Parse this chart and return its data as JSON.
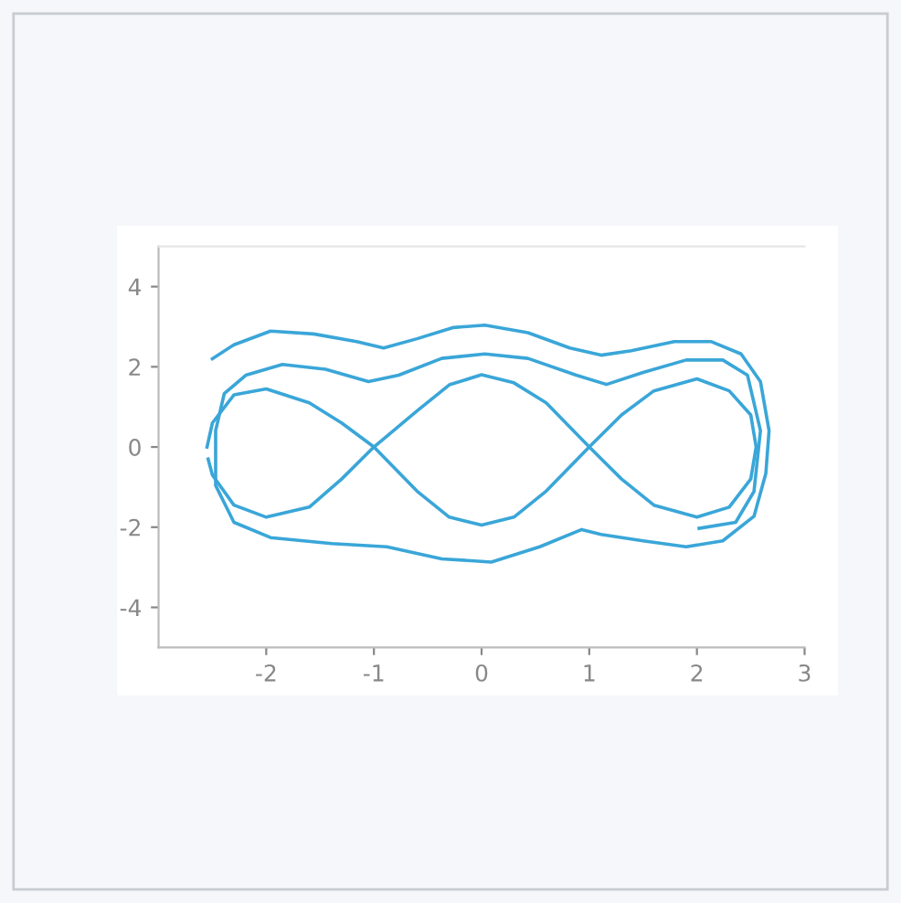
{
  "chart_data": {
    "type": "line",
    "xlim": [
      -3,
      3
    ],
    "ylim": [
      -5,
      5
    ],
    "xticks": [
      -2,
      -1,
      0,
      1,
      2,
      3
    ],
    "yticks": [
      -4,
      -2,
      0,
      2,
      4
    ],
    "grid": false,
    "line_style": "solid",
    "marker": "none",
    "series": [
      {
        "color": "#3aa6d8",
        "x": [
          -2.5,
          -2.3,
          -1.96,
          -1.56,
          -1.16,
          -0.91,
          -0.6,
          -0.26,
          0.03,
          0.43,
          0.82,
          1.11,
          1.39,
          1.79,
          2.13,
          2.41,
          2.59,
          2.67,
          2.64,
          2.53,
          2.24,
          1.9,
          1.5,
          1.11,
          0.93,
          0.54,
          0.09,
          -0.37,
          -0.88,
          -1.39,
          -1.96,
          -2.3,
          -2.47,
          -2.47,
          -2.39,
          -2.19,
          -1.85,
          -1.45,
          -1.05,
          -0.77,
          -0.37,
          0.03,
          0.43,
          0.88,
          1.16,
          1.5,
          1.9,
          2.24,
          2.47,
          2.59,
          2.53,
          2.36,
          2.02
        ],
        "values": [
          2.2,
          2.55,
          2.89,
          2.82,
          2.63,
          2.47,
          2.7,
          2.98,
          3.04,
          2.85,
          2.47,
          2.29,
          2.4,
          2.63,
          2.63,
          2.32,
          1.63,
          0.41,
          -0.66,
          -1.73,
          -2.34,
          -2.49,
          -2.34,
          -2.18,
          -2.06,
          -2.49,
          -2.87,
          -2.79,
          -2.49,
          -2.41,
          -2.26,
          -1.88,
          -0.96,
          0.41,
          1.33,
          1.79,
          2.06,
          1.94,
          1.63,
          1.79,
          2.21,
          2.32,
          2.21,
          1.79,
          1.56,
          1.86,
          2.17,
          2.17,
          1.79,
          0.41,
          -1.11,
          -1.88,
          -2.03
        ]
      },
      {
        "color": "#3aa6d8",
        "x": [
          -2.55,
          -2.5,
          -2.3,
          -2,
          -1.6,
          -1.3,
          -1,
          -0.6,
          -0.3,
          0,
          0.3,
          0.6,
          1,
          1.3,
          1.6,
          2,
          2.3,
          2.5,
          2.55,
          2.5,
          2.3,
          2,
          1.6,
          1.3,
          1,
          0.6,
          0.3,
          0,
          -0.3,
          -0.6,
          -1,
          -1.3,
          -1.6,
          -2,
          -2.3,
          -2.5,
          -2.54
        ],
        "values": [
          0,
          0.6,
          1.3,
          1.45,
          1.1,
          0.6,
          0,
          -1.1,
          -1.75,
          -1.95,
          -1.75,
          -1.1,
          0,
          0.8,
          1.4,
          1.7,
          1.4,
          0.8,
          0,
          -0.8,
          -1.5,
          -1.75,
          -1.45,
          -0.8,
          0,
          1.1,
          1.6,
          1.8,
          1.55,
          0.9,
          0,
          -0.8,
          -1.5,
          -1.75,
          -1.45,
          -0.7,
          -0.3
        ]
      }
    ]
  }
}
